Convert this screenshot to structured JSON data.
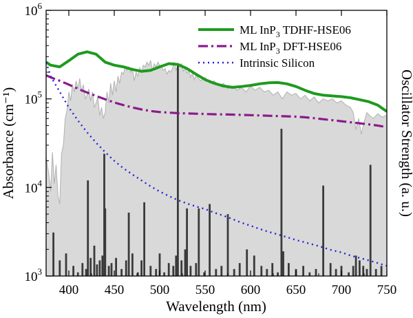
{
  "chart_data": {
    "type": "line",
    "title": "",
    "xlabel": "Wavelength (nm)",
    "ylabel": "Absorbance (cm⁻¹)",
    "y2label": "Oscillator Strength (a. u.)",
    "xlim": [
      375,
      750
    ],
    "ylim": [
      1000,
      1000000
    ],
    "yscale": "log",
    "grid": false,
    "legend_position": "top-right",
    "x_ticks": [
      400,
      450,
      500,
      550,
      600,
      650,
      700,
      750
    ],
    "x_tick_labels": [
      "400",
      "450",
      "500",
      "550",
      "600",
      "650",
      "700",
      "750"
    ],
    "y_ticks": [
      {
        "value": 1000,
        "base": "10",
        "exp": "3"
      },
      {
        "value": 10000,
        "base": "10",
        "exp": "4"
      },
      {
        "value": 100000,
        "base": "10",
        "exp": "5"
      },
      {
        "value": 1000000,
        "base": "10",
        "exp": "6"
      }
    ],
    "legend": [
      {
        "main": "ML InP",
        "sub": "3",
        "rest": " TDHF-HSE06",
        "color": "#1e9a1e",
        "dash": ""
      },
      {
        "main": "ML InP",
        "sub": "3",
        "rest": " DFT-HSE06",
        "color": "#8b1a8b",
        "dash": "14,5,3,5"
      },
      {
        "main": "Intrinsic Silicon",
        "sub": "",
        "rest": "",
        "color": "#1f1fd6",
        "dash": "2,5"
      }
    ],
    "series": [
      {
        "name": "ML InP3 TDHF-HSE06",
        "color": "#1e9a1e",
        "x": [
          375,
          380,
          390,
          400,
          410,
          420,
          430,
          440,
          450,
          460,
          470,
          480,
          490,
          500,
          510,
          520,
          530,
          540,
          550,
          560,
          570,
          580,
          590,
          600,
          610,
          620,
          630,
          640,
          650,
          660,
          670,
          680,
          690,
          700,
          710,
          720,
          730,
          740,
          750
        ],
        "y": [
          260000,
          240000,
          230000,
          270000,
          320000,
          340000,
          320000,
          260000,
          240000,
          230000,
          215000,
          205000,
          210000,
          230000,
          250000,
          245000,
          220000,
          190000,
          165000,
          150000,
          140000,
          135000,
          138000,
          142000,
          148000,
          152000,
          153000,
          148000,
          138000,
          125000,
          115000,
          110000,
          108000,
          106000,
          103000,
          98000,
          93000,
          85000,
          72000
        ]
      },
      {
        "name": "ML InP3 DFT-HSE06",
        "color": "#8b1a8b",
        "x": [
          375,
          380,
          390,
          400,
          410,
          420,
          430,
          440,
          450,
          460,
          470,
          480,
          490,
          500,
          510,
          520,
          530,
          540,
          550,
          560,
          570,
          580,
          590,
          600,
          610,
          620,
          630,
          640,
          650,
          660,
          670,
          680,
          690,
          700,
          710,
          720,
          730,
          740,
          750
        ],
        "y": [
          185000,
          175000,
          160000,
          145000,
          130000,
          118000,
          108000,
          99000,
          91000,
          85000,
          80000,
          76000,
          73000,
          71000,
          70000,
          69000,
          68500,
          68000,
          67500,
          67000,
          66800,
          66500,
          66000,
          65500,
          65000,
          64500,
          64000,
          63500,
          63000,
          62000,
          60500,
          59000,
          57500,
          56000,
          54500,
          53000,
          51500,
          50000,
          48000
        ]
      },
      {
        "name": "Intrinsic Silicon",
        "color": "#1f1fd6",
        "x": [
          375,
          380,
          390,
          400,
          410,
          420,
          430,
          440,
          450,
          460,
          470,
          480,
          490,
          500,
          510,
          520,
          530,
          540,
          550,
          560,
          570,
          580,
          590,
          600,
          610,
          620,
          630,
          640,
          650,
          660,
          670,
          680,
          690,
          700,
          710,
          720,
          730,
          740,
          750
        ],
        "y": [
          260000,
          180000,
          120000,
          80000,
          57000,
          42000,
          32000,
          25000,
          20000,
          16500,
          14000,
          12000,
          10300,
          9000,
          8000,
          7200,
          6600,
          6100,
          5700,
          5200,
          4800,
          4400,
          4000,
          3700,
          3400,
          3150,
          2950,
          2750,
          2550,
          2400,
          2250,
          2100,
          1950,
          1850,
          1700,
          1600,
          1500,
          1400,
          1300
        ]
      }
    ],
    "spectrum_fill": {
      "color": "#d9d9d9",
      "edge": "#b0b0b0",
      "x": [
        375,
        378,
        380,
        382,
        384,
        386,
        388,
        390,
        392,
        394,
        396,
        398,
        400,
        402,
        404,
        406,
        408,
        410,
        412,
        414,
        416,
        418,
        420,
        422,
        424,
        426,
        428,
        430,
        432,
        434,
        436,
        438,
        440,
        442,
        444,
        446,
        448,
        450,
        452,
        454,
        456,
        458,
        460,
        462,
        464,
        466,
        468,
        470,
        472,
        474,
        476,
        478,
        480,
        482,
        484,
        486,
        488,
        490,
        492,
        494,
        496,
        498,
        500,
        502,
        504,
        506,
        508,
        510,
        512,
        514,
        516,
        518,
        520,
        522,
        524,
        526,
        528,
        530,
        532,
        534,
        536,
        538,
        540,
        545,
        550,
        555,
        560,
        565,
        570,
        575,
        580,
        585,
        590,
        595,
        600,
        605,
        610,
        615,
        620,
        625,
        630,
        635,
        640,
        645,
        650,
        655,
        660,
        665,
        670,
        675,
        680,
        685,
        690,
        695,
        700,
        705,
        710,
        713,
        716,
        719,
        722,
        725,
        728,
        731,
        735,
        740,
        745,
        750
      ],
      "y": [
        22000,
        14000,
        9000,
        25000,
        11000,
        18000,
        8000,
        6500,
        24000,
        30000,
        60000,
        75000,
        120000,
        95000,
        145000,
        120000,
        160000,
        130000,
        170000,
        120000,
        145000,
        100000,
        110000,
        130000,
        95000,
        120000,
        80000,
        90000,
        105000,
        65000,
        80000,
        60000,
        70000,
        120000,
        90000,
        150000,
        110000,
        160000,
        120000,
        180000,
        150000,
        200000,
        190000,
        230000,
        210000,
        230000,
        200000,
        220000,
        160000,
        200000,
        180000,
        225000,
        200000,
        240000,
        230000,
        260000,
        240000,
        270000,
        210000,
        250000,
        230000,
        260000,
        240000,
        230000,
        210000,
        220000,
        190000,
        210000,
        200000,
        220000,
        260000,
        210000,
        240000,
        230000,
        250000,
        205000,
        225000,
        195000,
        210000,
        175000,
        195000,
        165000,
        185000,
        160000,
        175000,
        150000,
        160000,
        140000,
        150000,
        130000,
        140000,
        125000,
        135000,
        120000,
        140000,
        125000,
        135000,
        120000,
        125000,
        110000,
        120000,
        100000,
        120000,
        110000,
        115000,
        100000,
        110000,
        95000,
        105000,
        90000,
        100000,
        95000,
        100000,
        90000,
        95000,
        85000,
        80000,
        70000,
        45000,
        60000,
        40000,
        55000,
        70000,
        65000,
        60000,
        68000,
        62000,
        66000
      ]
    },
    "oscillator_bars": {
      "color": "#3a3a3a",
      "x": [
        383,
        390,
        397,
        405,
        410,
        415,
        419,
        421,
        424,
        428,
        431,
        434,
        437,
        439,
        440,
        444,
        447,
        452,
        458,
        463,
        466,
        470,
        476,
        480,
        483,
        490,
        496,
        500,
        505,
        510,
        515,
        518,
        520,
        524,
        528,
        530,
        534,
        540,
        543,
        549,
        555,
        562,
        568,
        575,
        582,
        588,
        596,
        604,
        612,
        618,
        624,
        630,
        634,
        636,
        642,
        650,
        658,
        665,
        672,
        680,
        688,
        694,
        700,
        708,
        713,
        716,
        720,
        724,
        728,
        732,
        738,
        744
      ],
      "y": [
        3100,
        1500,
        1800,
        1300,
        1100,
        1400,
        1200,
        12000,
        1600,
        2200,
        1350,
        1500,
        1700,
        24000,
        5800,
        1300,
        1400,
        1600,
        1200,
        1500,
        5200,
        1800,
        1100,
        1500,
        6800,
        1300,
        1200,
        1800,
        1100,
        1400,
        1300,
        1700,
        240000,
        1500,
        2000,
        5800,
        1300,
        1400,
        5800,
        1100,
        6500,
        1200,
        1300,
        5000,
        1200,
        1400,
        2000,
        1700,
        1300,
        1200,
        1400,
        1100,
        46000,
        1900,
        1400,
        1200,
        1300,
        1100,
        1200,
        10500,
        1400,
        1200,
        1300,
        1100,
        1300,
        1700,
        1500,
        1300,
        1200,
        18000,
        1200,
        1300
      ]
    }
  }
}
